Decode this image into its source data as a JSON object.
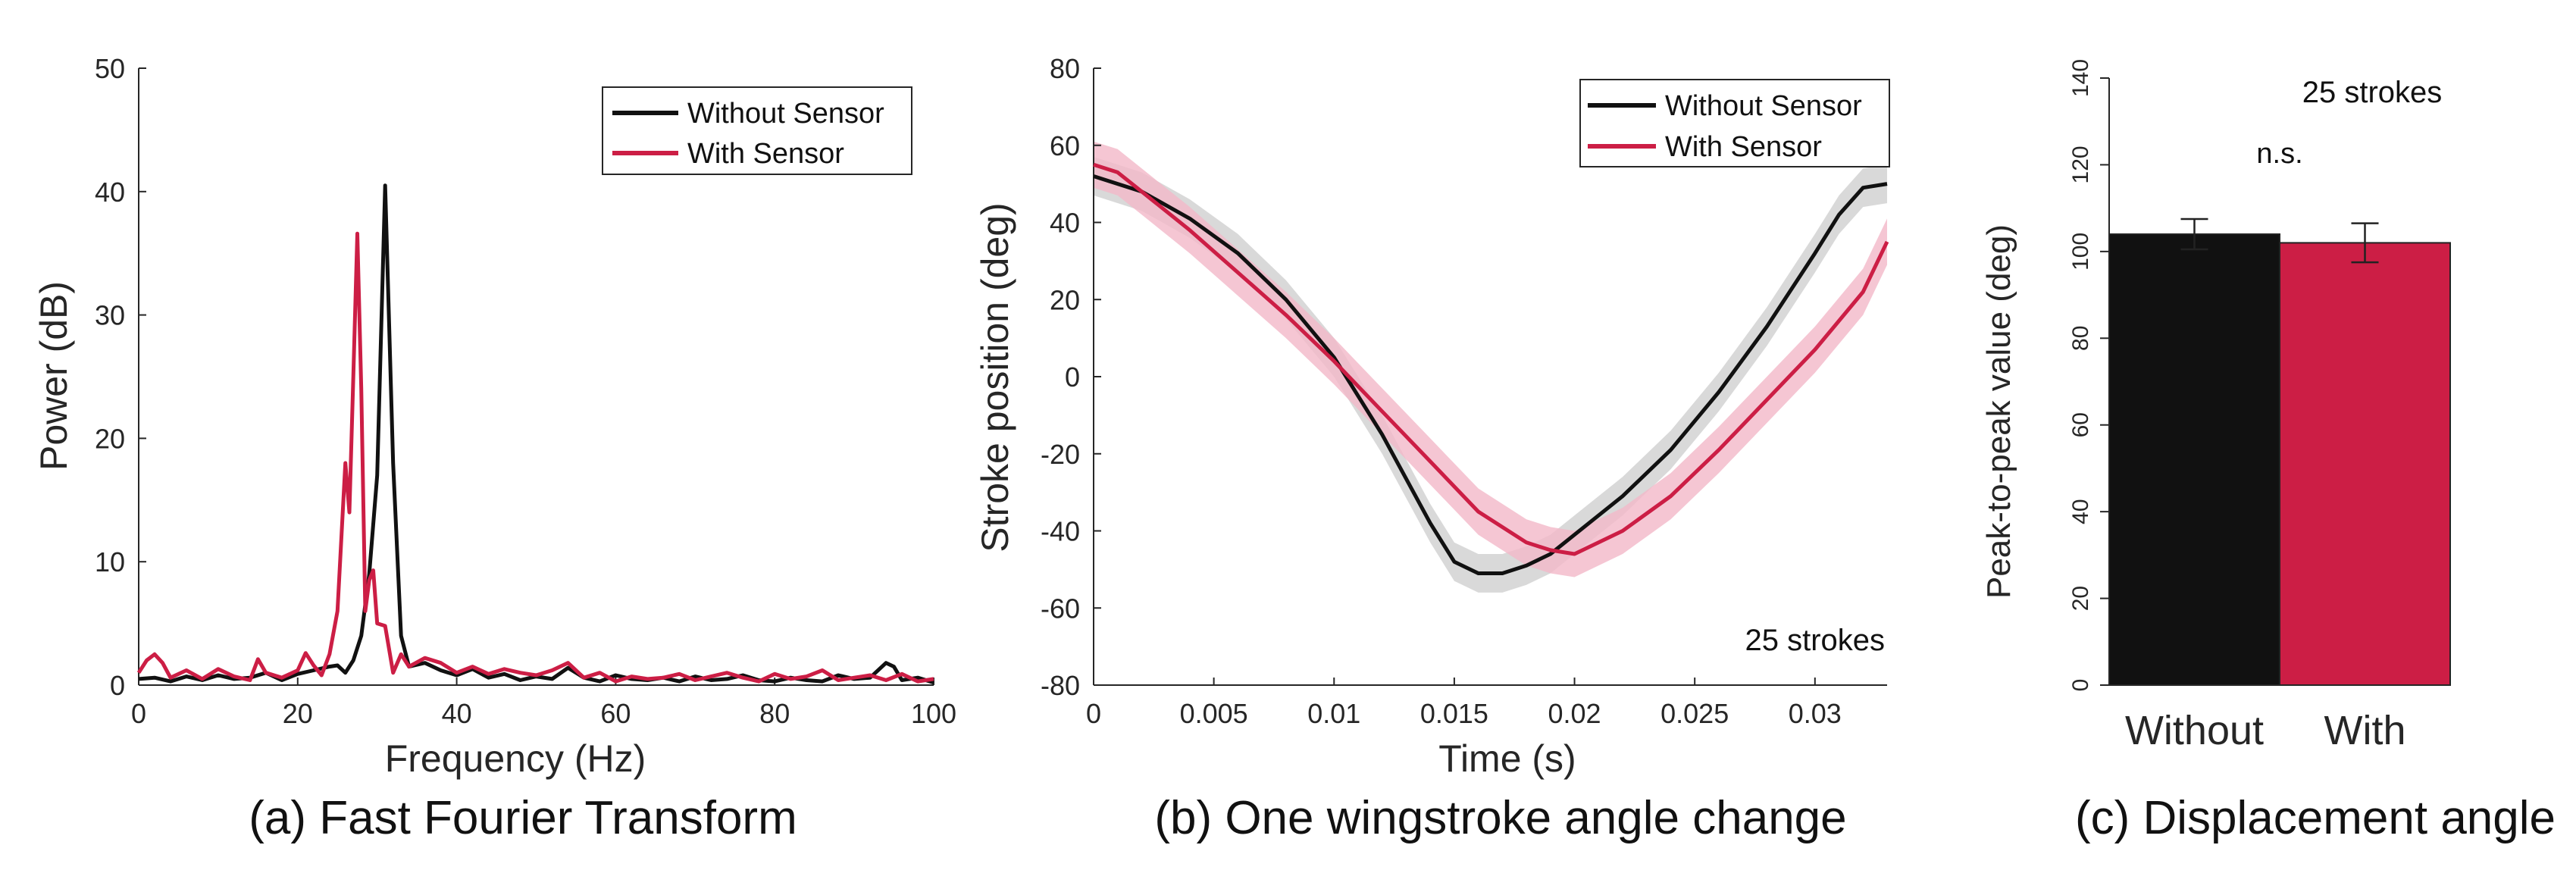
{
  "colors": {
    "without": "#111111",
    "with": "#cc1e45",
    "without_band": "#cfcfcf",
    "with_band": "#f3b8c8",
    "axis": "#262626"
  },
  "chart_data": [
    {
      "id": "a",
      "type": "line",
      "caption": "(a) Fast Fourier Transform",
      "xlabel": "Frequency (Hz)",
      "ylabel": "Power (dB)",
      "xlim": [
        0,
        100
      ],
      "ylim": [
        0,
        50
      ],
      "xticks": [
        0,
        20,
        40,
        60,
        80,
        100
      ],
      "yticks": [
        0,
        10,
        20,
        30,
        40,
        50
      ],
      "legend": [
        "Without Sensor",
        "With Sensor"
      ],
      "series": [
        {
          "name": "Without Sensor",
          "x": [
            0,
            2,
            4,
            6,
            8,
            10,
            12,
            14,
            16,
            18,
            20,
            22,
            24,
            25,
            26,
            27,
            28,
            29,
            30,
            31,
            32,
            33,
            34,
            36,
            38,
            40,
            42,
            44,
            46,
            48,
            50,
            52,
            54,
            56,
            58,
            60,
            62,
            64,
            66,
            68,
            70,
            72,
            74,
            76,
            78,
            80,
            82,
            84,
            86,
            88,
            90,
            92,
            94,
            95,
            96,
            98,
            100
          ],
          "y": [
            0.5,
            0.6,
            0.3,
            0.7,
            0.4,
            0.8,
            0.5,
            0.6,
            1.0,
            0.4,
            0.9,
            1.2,
            1.5,
            1.6,
            1.0,
            2.0,
            4.0,
            9.0,
            17.0,
            40.5,
            18.0,
            4.0,
            1.5,
            1.8,
            1.2,
            0.8,
            1.3,
            0.6,
            0.9,
            0.4,
            0.7,
            0.5,
            1.4,
            0.6,
            0.3,
            0.8,
            0.5,
            0.4,
            0.6,
            0.3,
            0.7,
            0.4,
            0.5,
            0.8,
            0.4,
            0.3,
            0.6,
            0.4,
            0.3,
            0.8,
            0.5,
            0.6,
            1.8,
            1.5,
            0.4,
            0.6,
            0.2
          ]
        },
        {
          "name": "With Sensor",
          "x": [
            0,
            1,
            2,
            3,
            4,
            6,
            8,
            10,
            12,
            14,
            15,
            16,
            18,
            20,
            21,
            22,
            23,
            24,
            25,
            26,
            26.5,
            27,
            27.5,
            28,
            28.5,
            29,
            29.5,
            30,
            31,
            32,
            33,
            34,
            36,
            38,
            40,
            42,
            44,
            46,
            48,
            50,
            52,
            54,
            56,
            58,
            60,
            62,
            64,
            66,
            68,
            70,
            72,
            74,
            76,
            78,
            80,
            82,
            84,
            86,
            88,
            90,
            92,
            94,
            96,
            98,
            100
          ],
          "y": [
            1.0,
            2.0,
            2.5,
            1.8,
            0.6,
            1.2,
            0.5,
            1.3,
            0.7,
            0.4,
            2.1,
            1.0,
            0.6,
            1.2,
            2.6,
            1.6,
            0.8,
            2.5,
            6.0,
            18.0,
            14.0,
            25.0,
            36.6,
            24.0,
            6.0,
            8.5,
            9.3,
            5.0,
            4.8,
            1.0,
            2.5,
            1.5,
            2.2,
            1.8,
            1.0,
            1.5,
            0.9,
            1.3,
            1.0,
            0.8,
            1.2,
            1.8,
            0.6,
            1.0,
            0.3,
            0.7,
            0.5,
            0.6,
            0.9,
            0.4,
            0.7,
            1.0,
            0.6,
            0.3,
            0.9,
            0.5,
            0.7,
            1.2,
            0.4,
            0.6,
            0.8,
            0.4,
            0.9,
            0.3,
            0.5
          ]
        }
      ]
    },
    {
      "id": "b",
      "type": "line",
      "caption": "(b) One wingstroke angle change",
      "xlabel": "Time (s)",
      "ylabel": "Stroke position (deg)",
      "xlim": [
        0,
        0.033
      ],
      "ylim": [
        -80,
        80
      ],
      "xticks": [
        0,
        0.005,
        0.01,
        0.015,
        0.02,
        0.025,
        0.03
      ],
      "xtick_labels": [
        "0",
        "0.005",
        "0.01",
        "0.015",
        "0.02",
        "0.025",
        "0.03"
      ],
      "yticks": [
        -80,
        -60,
        -40,
        -20,
        0,
        20,
        40,
        60,
        80
      ],
      "legend": [
        "Without Sensor",
        "With Sensor"
      ],
      "annotation": "25 strokes",
      "series": [
        {
          "name": "Without Sensor",
          "x": [
            0,
            0.002,
            0.004,
            0.006,
            0.008,
            0.01,
            0.012,
            0.014,
            0.015,
            0.016,
            0.017,
            0.018,
            0.019,
            0.02,
            0.022,
            0.024,
            0.026,
            0.028,
            0.03,
            0.031,
            0.032,
            0.033
          ],
          "y": [
            52,
            48,
            41,
            32,
            20,
            5,
            -15,
            -38,
            -48,
            -51,
            -51,
            -49,
            -46,
            -41,
            -31,
            -19,
            -4,
            13,
            32,
            42,
            49,
            50
          ],
          "band": 5
        },
        {
          "name": "With Sensor",
          "x": [
            0,
            0.001,
            0.002,
            0.004,
            0.006,
            0.008,
            0.01,
            0.012,
            0.014,
            0.016,
            0.018,
            0.019,
            0.02,
            0.022,
            0.024,
            0.026,
            0.028,
            0.03,
            0.032,
            0.033
          ],
          "y": [
            55,
            53,
            48,
            38,
            27,
            16,
            4,
            -9,
            -22,
            -35,
            -43,
            -45,
            -46,
            -40,
            -31,
            -19,
            -6,
            7,
            22,
            35
          ],
          "band": 6
        }
      ]
    },
    {
      "id": "c",
      "type": "bar",
      "caption": "(c) Displacement angle",
      "xlabel": "",
      "ylabel": "Peak-to-peak value (deg)",
      "ylim": [
        0,
        140
      ],
      "yticks": [
        0,
        20,
        40,
        60,
        80,
        100,
        120,
        140
      ],
      "categories": [
        "Without",
        "With"
      ],
      "values": [
        104,
        102
      ],
      "errors": [
        3.5,
        4.5
      ],
      "annotations": [
        "25 strokes",
        "n.s."
      ]
    }
  ]
}
